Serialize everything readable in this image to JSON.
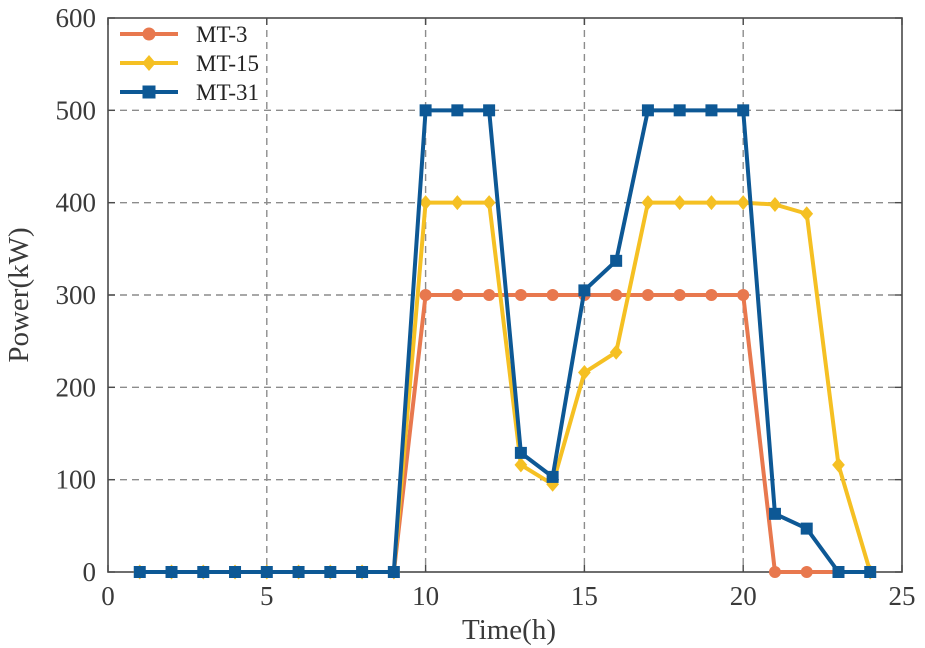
{
  "chart_data": {
    "type": "line",
    "title": "",
    "xlabel": "Time(h)",
    "ylabel": "Power(kW)",
    "xlim": [
      0,
      25
    ],
    "ylim": [
      0,
      600
    ],
    "xticks": [
      0,
      5,
      10,
      15,
      20,
      25
    ],
    "yticks": [
      0,
      100,
      200,
      300,
      400,
      500,
      600
    ],
    "xtick_labels": [
      "0",
      "5",
      "10",
      "15",
      "20",
      "25"
    ],
    "ytick_labels": [
      "0",
      "100",
      "200",
      "300",
      "400",
      "500",
      "600"
    ],
    "grid": true,
    "legend_position": "top-left",
    "x": [
      1,
      2,
      3,
      4,
      5,
      6,
      7,
      8,
      9,
      10,
      11,
      12,
      13,
      14,
      15,
      16,
      17,
      18,
      19,
      20,
      21,
      22,
      23,
      24
    ],
    "series": [
      {
        "name": "MT-3",
        "color": "#E8784E",
        "marker": "circle",
        "values": [
          0,
          0,
          0,
          0,
          0,
          0,
          0,
          0,
          0,
          300,
          300,
          300,
          300,
          300,
          300,
          300,
          300,
          300,
          300,
          300,
          0,
          0,
          0,
          0
        ]
      },
      {
        "name": "MT-15",
        "color": "#F5C023",
        "marker": "diamond",
        "values": [
          0,
          0,
          0,
          0,
          0,
          0,
          0,
          0,
          0,
          400,
          400,
          400,
          116,
          95,
          216,
          238,
          400,
          400,
          400,
          400,
          398,
          388,
          116,
          0
        ]
      },
      {
        "name": "MT-31",
        "color": "#0D5895",
        "marker": "square",
        "values": [
          0,
          0,
          0,
          0,
          0,
          0,
          0,
          0,
          0,
          500,
          500,
          500,
          129,
          103,
          305,
          337,
          500,
          500,
          500,
          500,
          63,
          47,
          0,
          0
        ]
      }
    ]
  }
}
